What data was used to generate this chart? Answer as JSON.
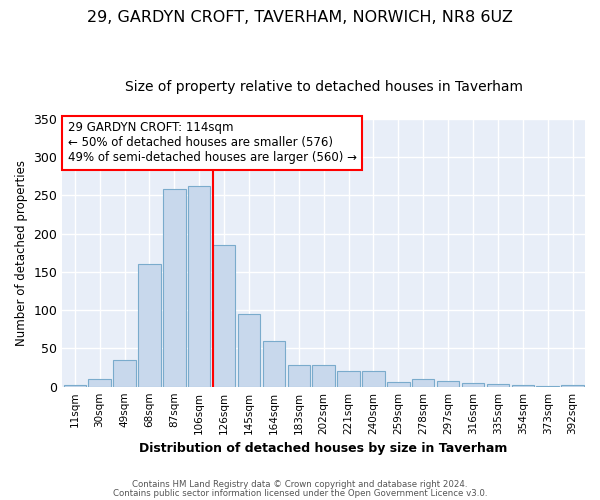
{
  "title1": "29, GARDYN CROFT, TAVERHAM, NORWICH, NR8 6UZ",
  "title2": "Size of property relative to detached houses in Taverham",
  "xlabel": "Distribution of detached houses by size in Taverham",
  "ylabel": "Number of detached properties",
  "categories": [
    "11sqm",
    "30sqm",
    "49sqm",
    "68sqm",
    "87sqm",
    "106sqm",
    "126sqm",
    "145sqm",
    "164sqm",
    "183sqm",
    "202sqm",
    "221sqm",
    "240sqm",
    "259sqm",
    "278sqm",
    "297sqm",
    "316sqm",
    "335sqm",
    "354sqm",
    "373sqm",
    "392sqm"
  ],
  "values": [
    2,
    10,
    35,
    160,
    258,
    262,
    185,
    95,
    60,
    28,
    28,
    20,
    20,
    6,
    10,
    7,
    5,
    4,
    2,
    1,
    2
  ],
  "bar_color": "#c8d8ec",
  "bar_edge_color": "#7aabcc",
  "vline_x": 6.0,
  "vline_color": "red",
  "annotation_text": "29 GARDYN CROFT: 114sqm\n← 50% of detached houses are smaller (576)\n49% of semi-detached houses are larger (560) →",
  "annotation_box_color": "white",
  "annotation_box_edge": "red",
  "footer1": "Contains HM Land Registry data © Crown copyright and database right 2024.",
  "footer2": "Contains public sector information licensed under the Open Government Licence v3.0.",
  "ylim": [
    0,
    350
  ],
  "bg_color": "#e8eef8",
  "grid_color": "#ffffff",
  "fig_bg": "#ffffff",
  "title1_fontsize": 11.5,
  "title2_fontsize": 10,
  "yticks": [
    0,
    50,
    100,
    150,
    200,
    250,
    300,
    350
  ]
}
